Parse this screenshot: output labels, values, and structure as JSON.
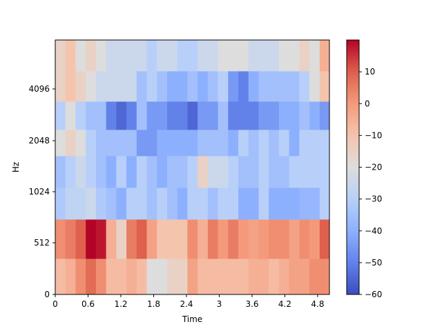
{
  "chart_data": {
    "type": "heatmap",
    "title": "",
    "xlabel": "Time",
    "ylabel": "Hz",
    "x_ticks": [
      "0",
      "0.6",
      "1.2",
      "1.8",
      "2.4",
      "3",
      "3.6",
      "4.2",
      "4.8"
    ],
    "x_tick_values": [
      0,
      0.6,
      1.2,
      1.8,
      2.4,
      3.0,
      3.6,
      4.2,
      4.8
    ],
    "xlim": [
      0,
      5.015
    ],
    "y_ticks": [
      "0",
      "512",
      "1024",
      "2048",
      "4096"
    ],
    "colorbar": {
      "colormap": "coolwarm",
      "range": [
        -60,
        20
      ],
      "ticks": [
        "10",
        "0",
        "−10",
        "−20",
        "−30",
        "−40",
        "−50",
        "−60"
      ],
      "tick_values": [
        10,
        0,
        -10,
        -20,
        -30,
        -40,
        -50,
        -60
      ]
    },
    "time_frame_step": 0.186,
    "rows_bottom_to_top": [
      [
        -8,
        -5,
        2,
        8,
        2,
        -8,
        -8,
        -5,
        -8,
        -20,
        -20,
        -15,
        -15,
        -2,
        -8,
        -8,
        -8,
        -8,
        -8,
        -5,
        -5,
        -8,
        -5,
        -2,
        -2,
        2,
        2,
        -15,
        -15,
        -15
      ],
      [
        2,
        5,
        10,
        20,
        18,
        -5,
        -15,
        5,
        10,
        -2,
        -10,
        -10,
        -10,
        2,
        -5,
        5,
        0,
        5,
        0,
        -2,
        0,
        2,
        2,
        -2,
        2,
        0,
        10,
        10,
        -2,
        -2
      ],
      [
        -32,
        -28,
        -28,
        -25,
        -32,
        -35,
        -40,
        -30,
        -30,
        -35,
        -30,
        -35,
        -40,
        -30,
        -30,
        -35,
        -30,
        -30,
        -40,
        -40,
        -30,
        -40,
        -40,
        -40,
        -38,
        -38,
        -30,
        -20,
        -20,
        -30
      ],
      [
        -35,
        -30,
        -25,
        -30,
        -35,
        -40,
        -30,
        -40,
        -30,
        -35,
        -40,
        -35,
        -35,
        -30,
        -15,
        -25,
        -25,
        -30,
        -35,
        -35,
        -30,
        -35,
        -35,
        -30,
        -30,
        -30,
        -30,
        -30,
        -30,
        -30
      ],
      [
        -20,
        -15,
        -20,
        -30,
        -35,
        -35,
        -35,
        -35,
        -45,
        -45,
        -40,
        -40,
        -40,
        -40,
        -35,
        -35,
        -35,
        -40,
        -30,
        -35,
        -30,
        -35,
        -30,
        -40,
        -30,
        -30,
        -30,
        -30,
        -35,
        -35
      ],
      [
        -30,
        -20,
        -30,
        -35,
        -35,
        -50,
        -55,
        -50,
        -35,
        -45,
        -45,
        -50,
        -50,
        -55,
        -45,
        -45,
        -35,
        -50,
        -50,
        -50,
        -45,
        -45,
        -40,
        -40,
        -35,
        -40,
        -45,
        -35,
        -30,
        -30
      ],
      [
        -15,
        -10,
        -15,
        -20,
        -25,
        -25,
        -25,
        -25,
        -35,
        -30,
        -35,
        -40,
        -40,
        -35,
        -40,
        -35,
        -30,
        -45,
        -50,
        -40,
        -35,
        -35,
        -35,
        -35,
        -30,
        -20,
        -10,
        -10,
        -10,
        -10
      ],
      [
        -15,
        -10,
        -20,
        -15,
        -20,
        -25,
        -25,
        -25,
        -25,
        -30,
        -25,
        -25,
        -30,
        -30,
        -25,
        -25,
        -20,
        -20,
        -20,
        -25,
        -25,
        -25,
        -20,
        -20,
        -15,
        -20,
        -5,
        0,
        -15,
        -15
      ]
    ]
  }
}
